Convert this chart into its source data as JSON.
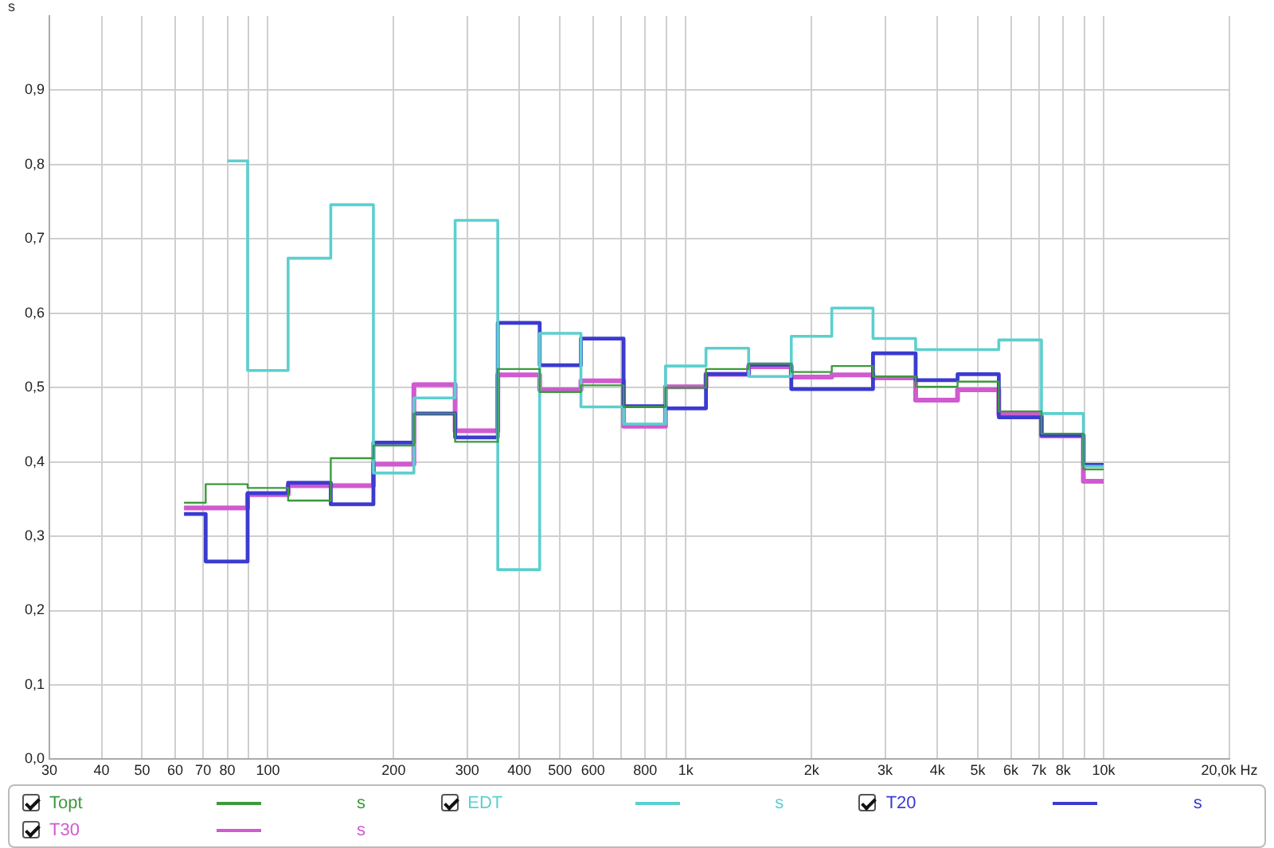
{
  "chart_data": {
    "type": "step",
    "ylabel": "s",
    "annotations": [
      "s",
      "s",
      "s",
      "s"
    ],
    "legend": "bottom",
    "grid": true,
    "log": "x",
    "marker": "none",
    "line_style": "solid",
    "x": [
      63,
      80,
      100,
      125,
      160,
      200,
      250,
      315,
      400,
      500,
      630,
      800,
      1000,
      1250,
      1600,
      2000,
      2500,
      3150,
      4000,
      5000,
      6300,
      8000,
      10000
    ],
    "xlim": [
      30,
      20000
    ],
    "xticks": [
      30,
      40,
      50,
      60,
      70,
      80,
      {
        "value": 90,
        "label": null
      },
      100,
      200,
      300,
      400,
      500,
      600,
      {
        "value": 700,
        "label": null
      },
      800,
      {
        "value": 900,
        "label": null
      },
      {
        "value": 1000,
        "label": "1k"
      },
      {
        "value": 2000,
        "label": "2k"
      },
      {
        "value": 3000,
        "label": "3k"
      },
      {
        "value": 4000,
        "label": "4k"
      },
      {
        "value": 5000,
        "label": "5k"
      },
      {
        "value": 6000,
        "label": "6k"
      },
      {
        "value": 7000,
        "label": "7k"
      },
      {
        "value": 8000,
        "label": "8k"
      },
      {
        "value": 9000,
        "label": null
      },
      {
        "value": 10000,
        "label": "10k"
      },
      {
        "value": 20000,
        "label": "20,0k Hz"
      }
    ],
    "ylim": [
      0,
      1
    ],
    "yticks": [
      {
        "value": 0,
        "label": "0,0"
      },
      {
        "value": 0.1,
        "label": "0,1"
      },
      {
        "value": 0.2,
        "label": "0,2"
      },
      {
        "value": 0.3,
        "label": "0,3"
      },
      {
        "value": 0.4,
        "label": "0,4"
      },
      {
        "value": 0.5,
        "label": "0,5"
      },
      {
        "value": 0.6,
        "label": "0,6"
      },
      {
        "value": 0.7,
        "label": "0,7"
      },
      {
        "value": 0.8,
        "label": "0,8"
      },
      {
        "value": 0.9,
        "label": "0,9"
      }
    ],
    "series": [
      {
        "name": "Topt",
        "color": "#3c9a3c",
        "values": [
          0.345,
          0.37,
          0.365,
          0.348,
          0.405,
          0.422,
          0.465,
          0.427,
          0.525,
          0.494,
          0.503,
          0.474,
          0.5,
          0.525,
          0.532,
          0.521,
          0.529,
          0.515,
          0.501,
          0.508,
          0.468,
          0.438,
          0.39
        ]
      },
      {
        "name": "EDT",
        "color": "#5ccfcf",
        "values": [
          null,
          0.805,
          0.523,
          0.674,
          0.746,
          0.385,
          0.486,
          0.725,
          0.255,
          0.573,
          0.474,
          0.451,
          0.529,
          0.553,
          0.515,
          0.569,
          0.607,
          0.566,
          0.551,
          0.551,
          0.564,
          0.465,
          0.394
        ]
      },
      {
        "name": "T20",
        "color": "#3b3bd0",
        "values": [
          0.33,
          0.266,
          0.358,
          0.372,
          0.343,
          0.426,
          0.465,
          0.433,
          0.587,
          0.53,
          0.566,
          0.475,
          0.472,
          0.518,
          0.531,
          0.498,
          0.498,
          0.546,
          0.51,
          0.518,
          0.46,
          0.436,
          0.396
        ]
      },
      {
        "name": "T30",
        "color": "#d05ad0",
        "values": [
          0.338,
          0.338,
          0.356,
          0.368,
          0.368,
          0.397,
          0.504,
          0.442,
          0.517,
          0.497,
          0.509,
          0.448,
          0.501,
          0.518,
          0.528,
          0.514,
          0.517,
          0.513,
          0.483,
          0.497,
          0.464,
          0.435,
          0.374
        ]
      }
    ]
  }
}
